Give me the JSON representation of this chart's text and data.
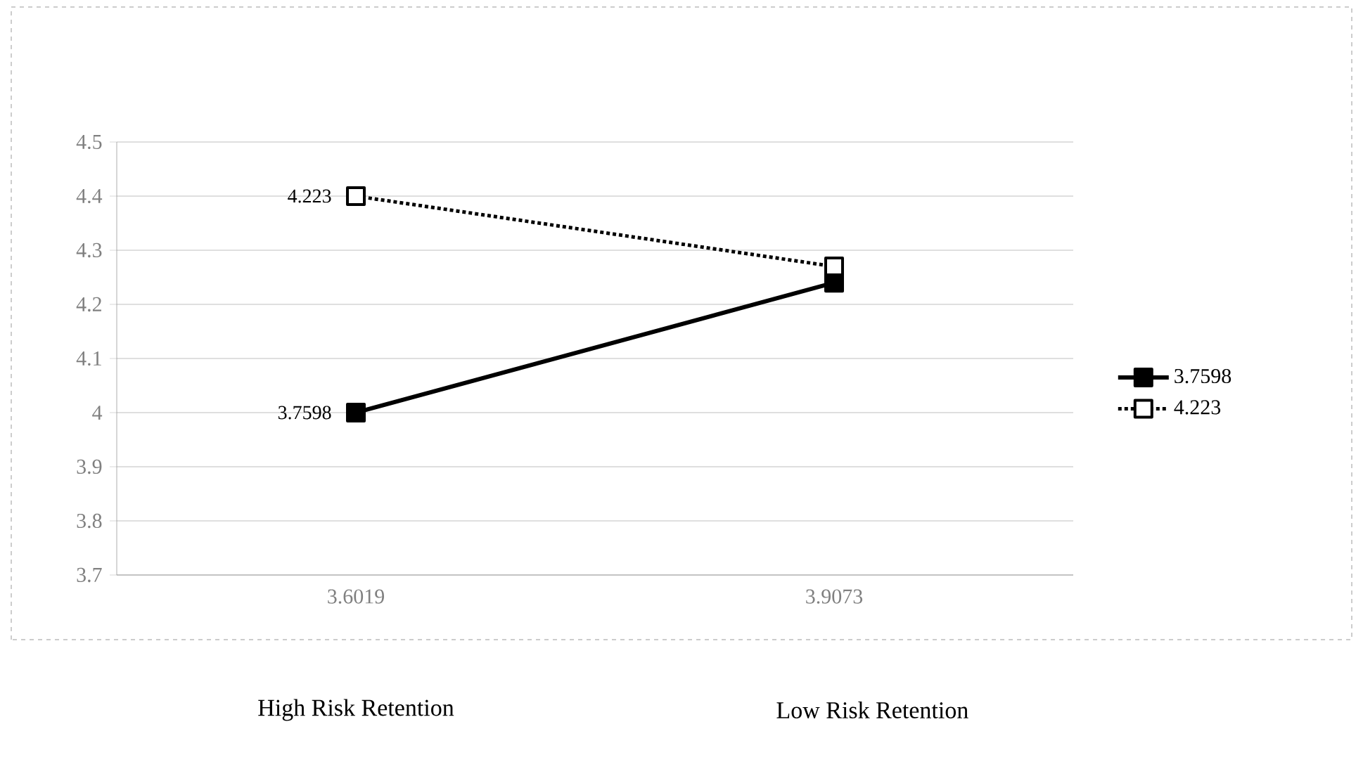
{
  "chart_data": {
    "type": "line",
    "categories": [
      "3.6019",
      "3.9073"
    ],
    "series": [
      {
        "name": "3.7598",
        "color": "#000000",
        "values": [
          4.0,
          4.24
        ],
        "line_style": "solid"
      },
      {
        "name": "4.223",
        "color": "#000000",
        "values": [
          4.4,
          4.27
        ],
        "line_style": "dotted"
      }
    ],
    "ylim": [
      3.7,
      4.5
    ],
    "yticks": [
      3.7,
      3.8,
      3.9,
      4,
      4.1,
      4.2,
      4.3,
      4.4,
      4.5
    ],
    "grid": "y",
    "legend": "right",
    "marker": "square",
    "annotations": [
      {
        "text": "3.7598",
        "x": "3.6019",
        "y": 4.0
      },
      {
        "text": "4.223",
        "x": "3.6019",
        "y": 4.4
      },
      "High Risk Retention",
      "Low Risk Retention"
    ]
  }
}
